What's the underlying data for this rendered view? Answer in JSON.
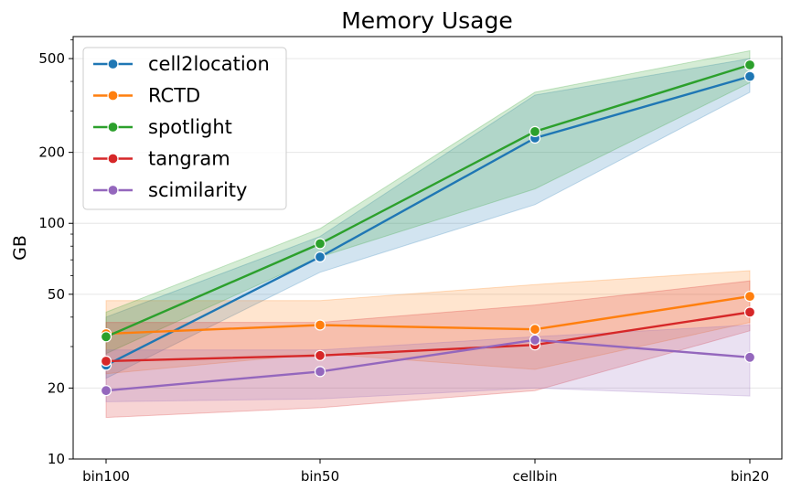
{
  "chart_data": {
    "type": "line",
    "title": "Memory Usage",
    "xlabel": "",
    "ylabel": "GB",
    "yscale": "log",
    "ylim": [
      10,
      620
    ],
    "yticks": [
      10,
      20,
      50,
      100,
      200,
      500
    ],
    "ytick_labels": [
      "10",
      "20",
      "50",
      "100",
      "200",
      "500"
    ],
    "categories": [
      "bin100",
      "bin50",
      "cellbin",
      "bin20"
    ],
    "grid": "horizontal",
    "legend_position": "top-left",
    "series": [
      {
        "name": "cell2location",
        "color": "#1f77b4",
        "values": [
          25,
          72,
          230,
          420
        ],
        "lower": [
          22,
          62,
          120,
          360
        ],
        "upper": [
          40,
          88,
          350,
          500
        ]
      },
      {
        "name": "RCTD",
        "color": "#ff7f0e",
        "values": [
          34,
          37,
          35.5,
          49
        ],
        "lower": [
          23,
          28,
          24,
          38
        ],
        "upper": [
          47,
          47,
          55,
          63
        ]
      },
      {
        "name": "spotlight",
        "color": "#2ca02c",
        "values": [
          33,
          82,
          245,
          470
        ],
        "lower": [
          28,
          72,
          140,
          395
        ],
        "upper": [
          42,
          95,
          360,
          540
        ]
      },
      {
        "name": "tangram",
        "color": "#d62728",
        "values": [
          26,
          27.5,
          30.5,
          42
        ],
        "lower": [
          15,
          16.5,
          19.5,
          35
        ],
        "upper": [
          38,
          38,
          45,
          57
        ]
      },
      {
        "name": "scimilarity",
        "color": "#9467bd",
        "values": [
          19.5,
          23.5,
          32,
          27
        ],
        "lower": [
          17.5,
          18,
          20,
          18.5
        ],
        "upper": [
          29,
          29,
          33,
          37
        ]
      }
    ]
  }
}
